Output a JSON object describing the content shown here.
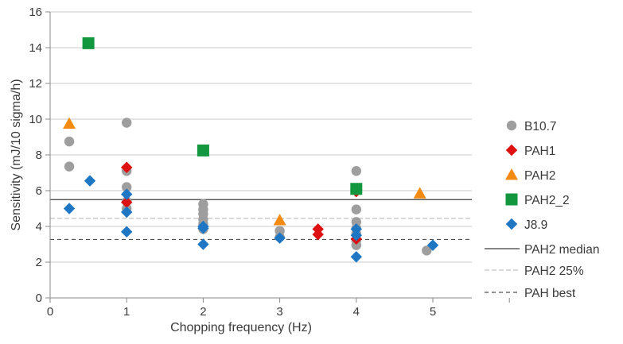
{
  "chart_data": {
    "type": "scatter",
    "title": "",
    "xlabel": "Chopping frequency (Hz)",
    "ylabel": "Sensitivity (mJ/10 sigma/h)",
    "xlim": [
      0,
      6
    ],
    "ylim": [
      0,
      16
    ],
    "xticks": [
      0,
      1,
      2,
      3,
      4,
      5
    ],
    "yticks": [
      0,
      2,
      4,
      6,
      8,
      10,
      12,
      14,
      16
    ],
    "grid": "horizontal",
    "legend_position": "right",
    "series": [
      {
        "name": "B10.7",
        "marker": "circle",
        "color": "#9e9e9e",
        "points": [
          [
            0.25,
            8.75
          ],
          [
            0.25,
            7.35
          ],
          [
            1.0,
            9.8
          ],
          [
            1.0,
            7.1
          ],
          [
            1.0,
            6.2
          ],
          [
            1.0,
            5.4
          ],
          [
            1.0,
            5.0
          ],
          [
            2.0,
            5.25
          ],
          [
            2.0,
            4.95
          ],
          [
            2.0,
            4.7
          ],
          [
            2.0,
            4.4
          ],
          [
            2.0,
            4.15
          ],
          [
            2.0,
            3.85
          ],
          [
            3.0,
            3.75
          ],
          [
            3.0,
            3.4
          ],
          [
            4.0,
            7.1
          ],
          [
            4.0,
            4.95
          ],
          [
            4.0,
            4.25
          ],
          [
            4.0,
            3.9
          ],
          [
            4.0,
            3.6
          ],
          [
            4.0,
            3.2
          ],
          [
            4.0,
            2.95
          ],
          [
            4.92,
            2.65
          ]
        ]
      },
      {
        "name": "PAH1",
        "marker": "diamond",
        "color": "#dd1111",
        "points": [
          [
            1.0,
            7.3
          ],
          [
            1.0,
            5.35
          ],
          [
            3.5,
            3.85
          ],
          [
            3.5,
            3.55
          ],
          [
            4.0,
            5.95
          ],
          [
            4.0,
            3.3
          ]
        ]
      },
      {
        "name": "PAH2",
        "marker": "triangle",
        "color": "#f38a12",
        "points": [
          [
            0.25,
            9.75
          ],
          [
            3.0,
            4.35
          ],
          [
            4.83,
            5.85
          ]
        ]
      },
      {
        "name": "PAH2_2",
        "marker": "square",
        "color": "#12963e",
        "points": [
          [
            0.5,
            14.25
          ],
          [
            2.0,
            8.25
          ],
          [
            4.0,
            6.1
          ]
        ]
      },
      {
        "name": "J8.9",
        "marker": "diamond",
        "color": "#1f77c4",
        "points": [
          [
            0.25,
            5.0
          ],
          [
            0.52,
            6.55
          ],
          [
            1.0,
            5.8
          ],
          [
            1.0,
            4.8
          ],
          [
            1.0,
            3.7
          ],
          [
            2.0,
            4.0
          ],
          [
            2.0,
            3.9
          ],
          [
            2.0,
            3.0
          ],
          [
            3.0,
            3.35
          ],
          [
            4.0,
            3.85
          ],
          [
            4.0,
            3.5
          ],
          [
            4.0,
            2.3
          ],
          [
            5.0,
            2.95
          ]
        ]
      }
    ],
    "reference_lines": [
      {
        "name": "PAH2 median",
        "y": 5.5,
        "style": "solid",
        "color": "#3c3c3c"
      },
      {
        "name": "PAH2 25%",
        "y": 4.45,
        "style": "dashed-light",
        "color": "#b4b4b4"
      },
      {
        "name": "PAH best",
        "y": 3.27,
        "style": "dashed",
        "color": "#505050"
      }
    ]
  }
}
